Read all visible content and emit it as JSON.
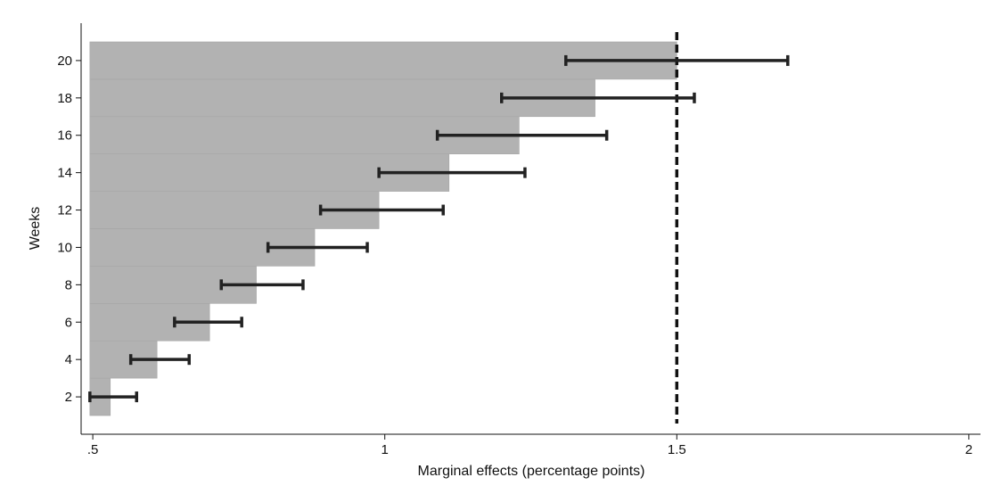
{
  "chart_data": {
    "type": "bar",
    "orientation": "horizontal",
    "xlabel": "Marginal effects (percentage points)",
    "ylabel": "Weeks",
    "xlim": [
      0.48,
      2.02
    ],
    "ylim": [
      0,
      22
    ],
    "x_ticks": [
      0.5,
      1,
      1.5,
      2
    ],
    "x_tick_labels": [
      ".5",
      "1",
      "1.5",
      "2"
    ],
    "y_ticks": [
      2,
      4,
      6,
      8,
      10,
      12,
      14,
      16,
      18,
      20
    ],
    "y_tick_labels": [
      "2",
      "4",
      "6",
      "8",
      "10",
      "12",
      "14",
      "16",
      "18",
      "20"
    ],
    "grid": false,
    "legend": false,
    "bar_base": 0.495,
    "bar_color": "#b2b2b2",
    "errorbar_color": "#222222",
    "reference_line": {
      "x": 1.5,
      "style": "dashed",
      "color": "#111111"
    },
    "series": [
      {
        "weeks": [
          2,
          4,
          6,
          8,
          10,
          12,
          14,
          16,
          18,
          20
        ],
        "values": [
          0.53,
          0.61,
          0.7,
          0.78,
          0.88,
          0.99,
          1.11,
          1.23,
          1.36,
          1.5
        ],
        "ci_low": [
          0.495,
          0.565,
          0.64,
          0.72,
          0.8,
          0.89,
          0.99,
          1.09,
          1.2,
          1.31
        ],
        "ci_high": [
          0.575,
          0.665,
          0.755,
          0.86,
          0.97,
          1.1,
          1.24,
          1.38,
          1.53,
          1.69
        ]
      }
    ]
  }
}
